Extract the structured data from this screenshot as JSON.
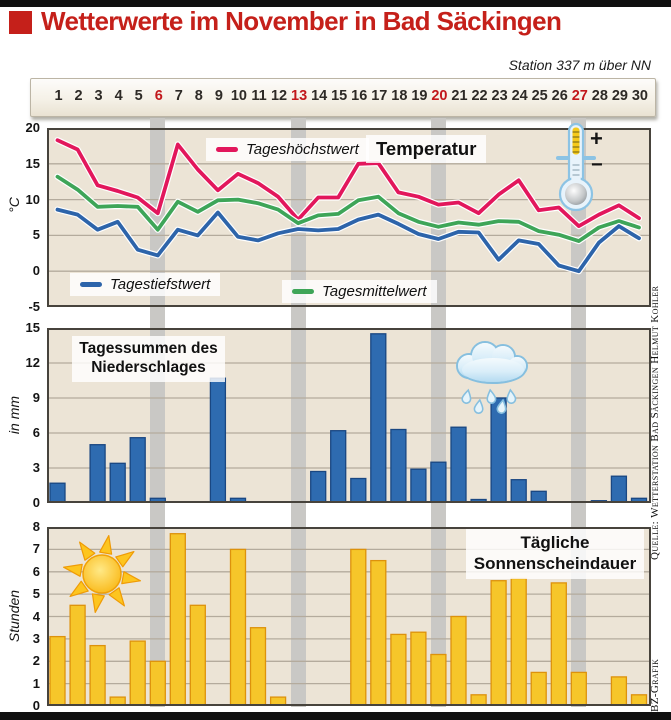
{
  "header": {
    "title": "Wetterwerte im November in Bad Säckingen",
    "station": "Station 337 m über NN"
  },
  "days": {
    "numbers": [
      1,
      2,
      3,
      4,
      5,
      6,
      7,
      8,
      9,
      10,
      11,
      12,
      13,
      14,
      15,
      16,
      17,
      18,
      19,
      20,
      21,
      22,
      23,
      24,
      25,
      26,
      27,
      28,
      29,
      30
    ],
    "sundays": [
      6,
      13,
      20,
      27
    ]
  },
  "temperature": {
    "box_label": "Temperatur",
    "unit": "°C",
    "axis": [
      20,
      15,
      10,
      5,
      0,
      -5
    ]
  },
  "precipitation": {
    "title1": "Tagessummen des",
    "title2": "Niederschlages",
    "unit": "in mm",
    "axis": [
      15,
      12,
      9,
      6,
      3,
      0
    ]
  },
  "sunshine": {
    "title1": "Tägliche",
    "title2": "Sonnenscheindauer",
    "unit": "Stunden",
    "axis": [
      8,
      7,
      6,
      5,
      4,
      3,
      2,
      1,
      0
    ]
  },
  "icons": {
    "thermometer_plus": "+",
    "thermometer_minus": "−"
  },
  "credits": {
    "source": "Quelle: Wetterstation Bad Säckingen Helmut Kohler",
    "graphic": "BZ-Grafik"
  },
  "colors": {
    "accent_red": "#c5201a",
    "line_max": "#e2175c",
    "line_mean": "#3ea558",
    "line_min": "#2d64aa",
    "bar_precip": "#2e6bb0",
    "bar_sun": "#f6c62a",
    "sunday_band": "#c9c8c5",
    "plot_background": "#ece4d6"
  },
  "chart_data": [
    {
      "type": "line",
      "title": "Temperatur",
      "x": [
        1,
        2,
        3,
        4,
        5,
        6,
        7,
        8,
        9,
        10,
        11,
        12,
        13,
        14,
        15,
        16,
        17,
        18,
        19,
        20,
        21,
        22,
        23,
        24,
        25,
        26,
        27,
        28,
        29,
        30
      ],
      "ylabel": "°C",
      "ylim": [
        -5,
        20
      ],
      "gridlines": [
        15,
        10,
        5,
        0
      ],
      "highlighted_days": [
        6,
        13,
        20,
        27
      ],
      "series": [
        {
          "name": "Tageshöchstwert",
          "color": "#e2175c",
          "values": [
            18.3,
            17.0,
            12.0,
            11.2,
            10.3,
            8.1,
            17.7,
            14.2,
            11.3,
            13.6,
            12.3,
            10.4,
            7.2,
            10.3,
            10.3,
            15.0,
            15.1,
            11.0,
            10.4,
            9.3,
            9.6,
            8.1,
            10.7,
            12.7,
            8.5,
            8.9,
            6.3,
            7.9,
            9.2,
            7.4
          ]
        },
        {
          "name": "Tagesmittelwert",
          "color": "#3ea558",
          "values": [
            13.2,
            11.4,
            9.0,
            9.1,
            9.0,
            5.8,
            9.7,
            8.3,
            9.9,
            10.0,
            9.5,
            8.6,
            6.7,
            7.8,
            8.0,
            9.9,
            10.4,
            8.1,
            6.9,
            6.2,
            6.8,
            6.5,
            7.0,
            6.9,
            5.6,
            5.1,
            4.2,
            6.1,
            7.0,
            6.1
          ]
        },
        {
          "name": "Tagestiefstwert",
          "color": "#2d64aa",
          "values": [
            8.6,
            7.9,
            5.8,
            6.9,
            3.0,
            2.2,
            5.8,
            5.0,
            8.2,
            4.8,
            4.3,
            5.3,
            5.9,
            5.7,
            5.9,
            7.2,
            7.9,
            6.6,
            5.2,
            4.5,
            5.5,
            5.4,
            1.6,
            4.3,
            3.8,
            0.8,
            0.0,
            4.0,
            6.3,
            4.6
          ]
        }
      ]
    },
    {
      "type": "bar",
      "title": "Tagessummen des Niederschlages",
      "x": [
        1,
        2,
        3,
        4,
        5,
        6,
        7,
        8,
        9,
        10,
        11,
        12,
        13,
        14,
        15,
        16,
        17,
        18,
        19,
        20,
        21,
        22,
        23,
        24,
        25,
        26,
        27,
        28,
        29,
        30
      ],
      "ylabel": "in mm",
      "ylim": [
        0,
        15
      ],
      "gridlines": [
        3,
        6,
        9,
        12
      ],
      "highlighted_days": [
        6,
        13,
        20,
        27
      ],
      "color": "#2e6bb0",
      "values": [
        1.7,
        0.1,
        5.0,
        3.4,
        5.6,
        0.4,
        0.1,
        0.1,
        10.7,
        0.4,
        0.1,
        0.1,
        0.0,
        2.7,
        6.2,
        2.1,
        14.5,
        6.3,
        2.9,
        3.5,
        6.5,
        0.3,
        9.0,
        2.0,
        1.0,
        0.1,
        0.1,
        0.2,
        2.3,
        0.4
      ]
    },
    {
      "type": "bar",
      "title": "Tägliche Sonnenscheindauer",
      "x": [
        1,
        2,
        3,
        4,
        5,
        6,
        7,
        8,
        9,
        10,
        11,
        12,
        13,
        14,
        15,
        16,
        17,
        18,
        19,
        20,
        21,
        22,
        23,
        24,
        25,
        26,
        27,
        28,
        29,
        30
      ],
      "ylabel": "Stunden",
      "ylim": [
        0,
        8
      ],
      "gridlines": [
        1,
        2,
        3,
        4,
        5,
        6,
        7
      ],
      "highlighted_days": [
        6,
        13,
        20,
        27
      ],
      "color": "#f6c62a",
      "values": [
        3.1,
        4.5,
        2.7,
        0.4,
        2.9,
        2.0,
        7.7,
        4.5,
        0.0,
        7.0,
        3.5,
        0.4,
        0.0,
        0.0,
        0.0,
        7.0,
        6.5,
        3.2,
        3.3,
        2.3,
        4.0,
        0.5,
        5.6,
        5.7,
        1.5,
        5.5,
        1.5,
        0.0,
        1.3,
        0.5
      ]
    }
  ]
}
